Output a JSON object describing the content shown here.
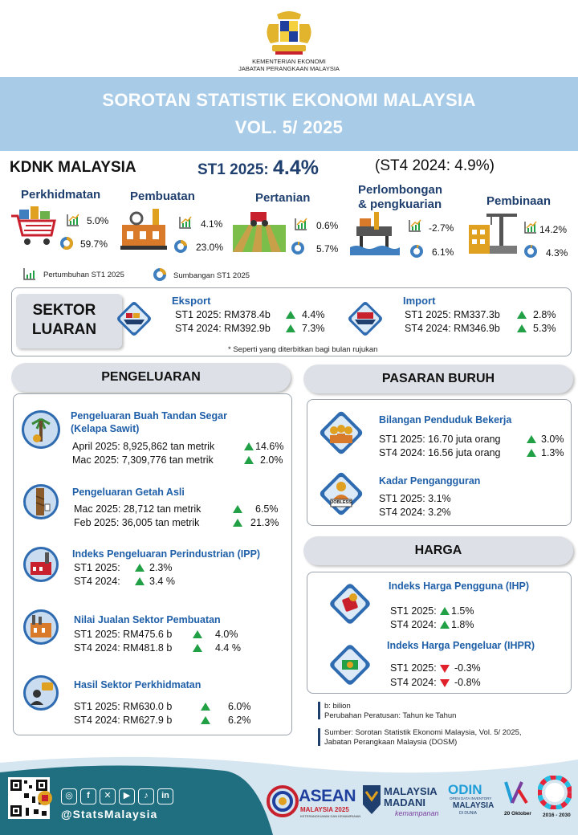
{
  "header": {
    "ministry_line1": "KEMENTERIAN EKONOMI",
    "ministry_line2": "JABATAN PERANGKAAN MALAYSIA",
    "title_line1": "SOROTAN STATISTIK EKONOMI MALAYSIA",
    "title_line2": "VOL. 5/ 2025"
  },
  "kdnk": {
    "title": "KDNK MALAYSIA",
    "st1_label": "ST1 2025: ",
    "st1_value": "4.4%",
    "st4": "(ST4 2024: 4.9%)",
    "sectors": [
      {
        "name": "Perkhidmatan",
        "growth": "5.0%",
        "share": "59.7%",
        "share_frac": 0.597
      },
      {
        "name": "Pembuatan",
        "growth": "4.1%",
        "share": "23.0%",
        "share_frac": 0.23
      },
      {
        "name": "Pertanian",
        "growth": "0.6%",
        "share": "5.7%",
        "share_frac": 0.057
      },
      {
        "name": "Perlombongan",
        "name2": "& pengkuarian",
        "growth": "-2.7%",
        "share": "6.1%",
        "share_frac": 0.061
      },
      {
        "name": "Pembinaan",
        "growth": "14.2%",
        "share": "4.3%",
        "share_frac": 0.043
      }
    ],
    "legend_growth": "Pertumbuhan ST1 2025",
    "legend_share": "Sumbangan ST1 2025"
  },
  "luaran": {
    "label1": "SEKTOR",
    "label2": "LUARAN",
    "eksport": {
      "title": "Eksport",
      "l1": "ST1 2025: RM378.4b",
      "v1": "4.4%",
      "l2": "ST4 2024: RM392.9b",
      "v2": "7.3%"
    },
    "import": {
      "title": "Import",
      "l1": "ST1 2025: RM337.3b",
      "v1": "2.8%",
      "l2": "ST4 2024: RM346.9b",
      "v2": "5.3%"
    },
    "note": "* Seperti yang diterbitkan bagi bulan rujukan"
  },
  "pengeluaran": {
    "title": "PENGELUARAN",
    "items": [
      {
        "title": "Pengeluaran Buah Tandan Segar",
        "title2": "(Kelapa Sawit)",
        "l1": "April 2025: 8,925,862 tan metrik",
        "v1": "14.6%",
        "l2": "Mac 2025: 7,309,776 tan metrik",
        "v2": "2.0%"
      },
      {
        "title": "Pengeluaran Getah Asli",
        "l1": "Mac 2025: 28,712 tan metrik",
        "v1": "6.5%",
        "l2": "Feb 2025: 36,005 tan metrik",
        "v2": "21.3%"
      },
      {
        "title": "Indeks Pengeluaran Perindustrian (IPP)",
        "l1": "ST1 2025:",
        "v1": "2.3%",
        "l2": "ST4 2024:",
        "v2": "3.4 %"
      },
      {
        "title": "Nilai Jualan Sektor Pembuatan",
        "l1": "ST1 2025: RM475.6 b",
        "v1": "4.0%",
        "l2": "ST4 2024: RM481.8 b",
        "v2": "4.4 %"
      },
      {
        "title": "Hasil Sektor Perkhidmatan",
        "l1": "ST1 2025: RM630.0 b",
        "v1": "6.0%",
        "l2": "ST4 2024: RM627.9 b",
        "v2": "6.2%"
      }
    ]
  },
  "buruh": {
    "title": "PASARAN BURUH",
    "bekerja": {
      "title": "Bilangan Penduduk Bekerja",
      "l1": "ST1 2025: 16.70 juta orang",
      "v1": "3.0%",
      "l2": "ST4 2024: 16.56 juta orang",
      "v2": "1.3%"
    },
    "jobless_label": "JOBLESS",
    "kadar": {
      "title": "Kadar Pengangguran",
      "l1": "ST1 2025: 3.1%",
      "l2": "ST4 2024: 3.2%"
    }
  },
  "harga": {
    "title": "HARGA",
    "ihp": {
      "title": "Indeks Harga Pengguna (IHP)",
      "l1": "ST1 2025:",
      "v1": "1.5%",
      "l2": "ST4 2024:",
      "v2": "1.8%"
    },
    "ihpr": {
      "title": "Indeks Harga Pengeluar (IHPR)",
      "l1": "ST1 2025:",
      "v1": "-0.3%",
      "l2": "ST4 2024:",
      "v2": "-0.8%"
    }
  },
  "footnotes": {
    "b1": "b: bilion",
    "b2": "Perubahan Peratusan: Tahun ke Tahun",
    "s1": "Sumber: Sorotan Statistik Ekonomi Malaysia, Vol. 5/ 2025,",
    "s2": "Jabatan Perangkaan Malaysia (DOSM)"
  },
  "footer": {
    "handle": "@StatsMalaysia",
    "asean": "ASEAN",
    "asean_sub": "MALAYSIA 2025",
    "asean_tag": "KETERANGKUMAN DAN KEMAMPANAN",
    "madani1": "MALAYSIA",
    "madani2": "MADANI",
    "madani3": "kemampanan",
    "odin": "ODIN",
    "odin_sub1": "OPEN DATA INVENTORY",
    "odin_sub2": "MALAYSIA",
    "odin_sub3": "DI DUNIA",
    "wsd": "20 Oktober",
    "sdg": "2016 - 2030"
  },
  "colors": {
    "banner": "#a8cbe7",
    "title_blue": "#1f5fa8",
    "navy": "#1f3f6e",
    "up_green": "#22a045",
    "down_red": "#e0202a",
    "footer_teal": "#1f6f80"
  }
}
